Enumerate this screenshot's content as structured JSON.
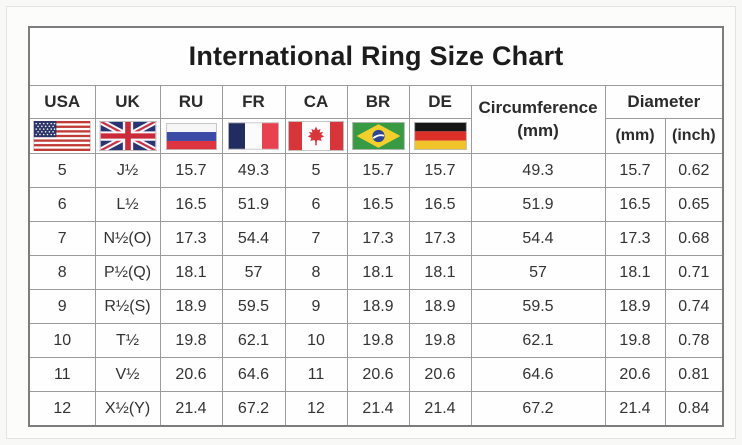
{
  "title": "International Ring Size Chart",
  "header": {
    "countries": [
      "USA",
      "UK",
      "RU",
      "FR",
      "CA",
      "BR",
      "DE"
    ],
    "flags": [
      "usa-flag-icon",
      "uk-flag-icon",
      "ru-flag-icon",
      "fr-flag-icon",
      "ca-flag-icon",
      "br-flag-icon",
      "de-flag-icon"
    ],
    "circumference_line1": "Circumference",
    "circumference_line2": "(mm)",
    "diameter": "Diameter",
    "diameter_mm": "(mm)",
    "diameter_inch": "(inch)"
  },
  "colors": {
    "table_border": "#7d7d7d",
    "grid_line": "#9b9b9b",
    "text": "#333333",
    "title_text": "#1c1c1c",
    "flag_navy": "#2b3473",
    "flag_red": "#d8353b",
    "flag_blue_ru": "#3a4aa5",
    "flag_green_br": "#389a43",
    "flag_yellow_br": "#f3cf2e",
    "flag_gold_de": "#f1c32a"
  },
  "chart_data": {
    "type": "table",
    "title": "International Ring Size Chart",
    "columns": [
      "USA",
      "UK",
      "RU",
      "FR",
      "CA",
      "BR",
      "DE",
      "Circumference (mm)",
      "Diameter (mm)",
      "Diameter (inch)"
    ],
    "rows": [
      [
        "5",
        "J½",
        "15.7",
        "49.3",
        "5",
        "15.7",
        "15.7",
        "49.3",
        "15.7",
        "0.62"
      ],
      [
        "6",
        "L½",
        "16.5",
        "51.9",
        "6",
        "16.5",
        "16.5",
        "51.9",
        "16.5",
        "0.65"
      ],
      [
        "7",
        "N½(O)",
        "17.3",
        "54.4",
        "7",
        "17.3",
        "17.3",
        "54.4",
        "17.3",
        "0.68"
      ],
      [
        "8",
        "P½(Q)",
        "18.1",
        "57",
        "8",
        "18.1",
        "18.1",
        "57",
        "18.1",
        "0.71"
      ],
      [
        "9",
        "R½(S)",
        "18.9",
        "59.5",
        "9",
        "18.9",
        "18.9",
        "59.5",
        "18.9",
        "0.74"
      ],
      [
        "10",
        "T½",
        "19.8",
        "62.1",
        "10",
        "19.8",
        "19.8",
        "62.1",
        "19.8",
        "0.78"
      ],
      [
        "11",
        "V½",
        "20.6",
        "64.6",
        "11",
        "20.6",
        "20.6",
        "64.6",
        "20.6",
        "0.81"
      ],
      [
        "12",
        "X½(Y)",
        "21.4",
        "67.2",
        "12",
        "21.4",
        "21.4",
        "67.2",
        "21.4",
        "0.84"
      ]
    ]
  }
}
